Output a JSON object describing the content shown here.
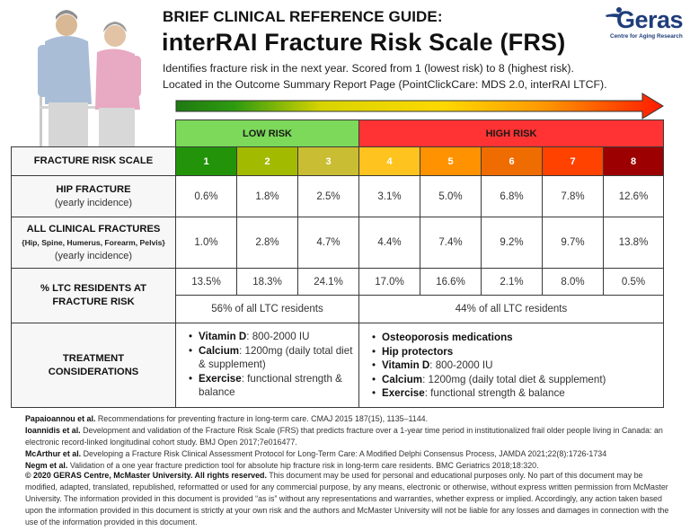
{
  "header": {
    "supertitle": "BRIEF CLINICAL REFERENCE GUIDE:",
    "title": "interRAI Fracture Risk Scale (FRS)",
    "description_line1": "Identifies fracture risk in the next year. Scored from 1 (lowest risk) to 8 (highest risk).",
    "description_line2": "Located in the Outcome Summary Report Page (PointClickCare: MDS 2.0, interRAI LTCF)."
  },
  "logo": {
    "name": "Geras",
    "tagline": "Centre for Aging Research",
    "color": "#1f3d7a"
  },
  "photo": {
    "alt": "elderly-couple-with-walker-photo"
  },
  "risk_arrow": {
    "gradient": [
      "#1f7a12",
      "#2e9a10",
      "#d8d400",
      "#ffd800",
      "#ff9a00",
      "#ff2a00"
    ]
  },
  "table": {
    "bands": [
      {
        "label": "LOW RISK",
        "color": "#7cd95a",
        "span": [
          1,
          3
        ]
      },
      {
        "label": "HIGH RISK",
        "color": "#ff3333",
        "span": [
          4,
          8
        ]
      }
    ],
    "row_labels": {
      "scale": "FRACTURE RISK SCALE",
      "hip": "HIP FRACTURE",
      "hip_sub": "(yearly incidence)",
      "all": "ALL CLINICAL FRACTURES",
      "all_detail": "{Hip, Spine, Humerus, Forearm, Pelvis}",
      "all_sub": "(yearly incidence)",
      "ltc_line1": "% LTC RESIDENTS AT",
      "ltc_line2": "FRACTURE RISK",
      "treat_line1": "TREATMENT",
      "treat_line2": "CONSIDERATIONS"
    },
    "scale": [
      {
        "value": "1",
        "color": "#23940a"
      },
      {
        "value": "2",
        "color": "#a2ba00"
      },
      {
        "value": "3",
        "color": "#c9bd33"
      },
      {
        "value": "4",
        "color": "#ffc31f"
      },
      {
        "value": "5",
        "color": "#ff9200"
      },
      {
        "value": "6",
        "color": "#ef6c00"
      },
      {
        "value": "7",
        "color": "#ff4200"
      },
      {
        "value": "8",
        "color": "#9c0000"
      }
    ],
    "hip_fracture": [
      "0.6%",
      "1.8%",
      "2.5%",
      "3.1%",
      "5.0%",
      "6.8%",
      "7.8%",
      "12.6%"
    ],
    "all_fractures": [
      "1.0%",
      "2.8%",
      "4.7%",
      "4.4%",
      "7.4%",
      "9.2%",
      "9.7%",
      "13.8%"
    ],
    "ltc_residents": [
      "13.5%",
      "18.3%",
      "24.1%",
      "17.0%",
      "16.6%",
      "2.1%",
      "8.0%",
      "0.5%"
    ],
    "ltc_low_total": "56% of all LTC residents",
    "ltc_high_total": "44% of all LTC residents",
    "treatment_low": [
      {
        "bold": "Vitamin D",
        "text": ": 800-2000 IU"
      },
      {
        "bold": "Calcium",
        "text": ": 1200mg (daily total diet & supplement)"
      },
      {
        "bold": "Exercise",
        "text": ": functional strength & balance"
      }
    ],
    "treatment_high": [
      {
        "bold": "Osteoporosis medications",
        "text": ""
      },
      {
        "bold": "Hip protectors",
        "text": ""
      },
      {
        "bold": "Vitamin D",
        "text": ": 800-2000 IU"
      },
      {
        "bold": "Calcium",
        "text": ": 1200mg (daily total diet & supplement)"
      },
      {
        "bold": "Exercise",
        "text": ": functional strength & balance"
      }
    ]
  },
  "references": [
    {
      "authors": "Papaioannou et al.",
      "text": " Recommendations for preventing fracture in long-term care. CMAJ 2015 187(15), 1135–1144."
    },
    {
      "authors": "Ioannidis et al.",
      "text": " Development and validation of the Fracture Risk Scale (FRS) that predicts fracture over a 1-year time period in institutionalized frail older people living in Canada: an electronic record-linked longitudinal cohort study. BMJ Open 2017;7e016477."
    },
    {
      "authors": "McArthur et al.",
      "text": " Developing a Fracture Risk Clinical Assessment Protocol for Long-Term Care: A Modified Delphi Consensus Process, JAMDA 2021;22(8):1726-1734"
    },
    {
      "authors": "Negm et al.",
      "text": " Validation of a one year fracture prediction tool for absolute hip fracture risk in long-term care residents. BMC Geriatrics 2018;18:320."
    }
  ],
  "copyright": {
    "bold": "© 2020 GERAS Centre, McMaster University. All rights reserved.",
    "text": " This document may be used for personal and educational purposes only. No part of this document may be modified, adapted, translated, republished, reformatted or used for any commercial purpose, by any means, electronic or otherwise, without express written permission from McMaster University. The information provided in this document is provided “as is” without any representations and warranties, whether express or implied. Accordingly, any action taken based upon the information provided in this document is strictly at your own risk and the authors and McMaster University will not be liable for any losses and damages in connection with the use of the information provided in this document."
  }
}
